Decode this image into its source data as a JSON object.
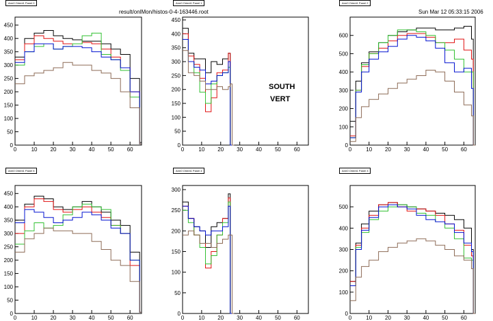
{
  "header": {
    "file": "result/onlMon/histos-0-4-163446.root",
    "datetime": "Sun Mar 12 05:33:15 2006"
  },
  "annotation": [
    "SOUTH",
    "VERT"
  ],
  "colors": {
    "black": "#000000",
    "red": "#e01010",
    "green": "#30c030",
    "blue": "#0010d0",
    "brown": "#8c6a55"
  },
  "chart_data": [
    {
      "type": "line",
      "title": "Arm0 Orient1 Panel 0",
      "xlim": [
        0,
        66
      ],
      "ylim": [
        0,
        480
      ],
      "xticks": [
        0,
        10,
        20,
        30,
        40,
        50,
        60
      ],
      "yticks": [
        0,
        50,
        100,
        150,
        200,
        250,
        300,
        350,
        400,
        450
      ],
      "x": [
        0,
        5,
        10,
        15,
        20,
        25,
        30,
        35,
        40,
        45,
        50,
        55,
        60,
        65
      ],
      "series": [
        {
          "color": "black",
          "values": [
            330,
            400,
            420,
            430,
            410,
            400,
            395,
            390,
            390,
            380,
            360,
            340,
            250,
            10
          ]
        },
        {
          "color": "red",
          "values": [
            320,
            380,
            410,
            400,
            390,
            380,
            380,
            385,
            380,
            360,
            330,
            290,
            200,
            5
          ]
        },
        {
          "color": "green",
          "values": [
            300,
            350,
            370,
            380,
            360,
            370,
            380,
            410,
            420,
            340,
            320,
            280,
            180,
            5
          ]
        },
        {
          "color": "blue",
          "values": [
            310,
            350,
            380,
            380,
            360,
            370,
            370,
            365,
            350,
            330,
            320,
            290,
            200,
            5
          ]
        },
        {
          "color": "brown",
          "values": [
            230,
            260,
            270,
            280,
            290,
            310,
            300,
            300,
            280,
            270,
            250,
            200,
            140,
            5
          ]
        }
      ]
    },
    {
      "type": "line",
      "title": "Arm0 Orient1 Panel 1",
      "xlim": [
        0,
        66
      ],
      "ylim": [
        0,
        460
      ],
      "xticks": [
        0,
        10,
        20,
        30,
        40,
        50,
        60
      ],
      "yticks": [
        0,
        50,
        100,
        150,
        200,
        250,
        300,
        350,
        400,
        450
      ],
      "x": [
        0,
        3,
        6,
        9,
        12,
        15,
        18,
        21,
        24,
        25,
        26
      ],
      "series": [
        {
          "color": "black",
          "values": [
            420,
            330,
            310,
            310,
            260,
            300,
            290,
            310,
            330,
            0,
            0
          ]
        },
        {
          "color": "red",
          "values": [
            400,
            320,
            290,
            240,
            120,
            170,
            260,
            270,
            330,
            0,
            0
          ]
        },
        {
          "color": "green",
          "values": [
            380,
            300,
            260,
            190,
            150,
            220,
            250,
            260,
            280,
            0,
            0
          ]
        },
        {
          "color": "blue",
          "values": [
            380,
            300,
            280,
            270,
            220,
            230,
            250,
            260,
            300,
            0,
            0
          ]
        },
        {
          "color": "brown",
          "values": [
            340,
            260,
            250,
            230,
            200,
            200,
            210,
            200,
            210,
            220,
            0
          ]
        }
      ]
    },
    {
      "type": "line",
      "title": "Arm0 Orient1 Panel 2",
      "xlim": [
        0,
        66
      ],
      "ylim": [
        0,
        700
      ],
      "xticks": [
        0,
        10,
        20,
        30,
        40,
        50,
        60
      ],
      "yticks": [
        0,
        100,
        200,
        300,
        400,
        500,
        600
      ],
      "x": [
        0,
        3,
        6,
        10,
        15,
        20,
        25,
        30,
        35,
        40,
        45,
        50,
        55,
        60,
        64,
        65
      ],
      "series": [
        {
          "color": "black",
          "values": [
            130,
            350,
            450,
            510,
            560,
            600,
            620,
            630,
            640,
            640,
            630,
            630,
            640,
            650,
            580,
            0
          ]
        },
        {
          "color": "red",
          "values": [
            50,
            300,
            430,
            500,
            530,
            570,
            600,
            610,
            610,
            590,
            560,
            560,
            580,
            520,
            470,
            0
          ]
        },
        {
          "color": "green",
          "values": [
            40,
            300,
            440,
            500,
            560,
            600,
            630,
            630,
            620,
            600,
            560,
            520,
            470,
            400,
            400,
            0
          ]
        },
        {
          "color": "blue",
          "values": [
            40,
            290,
            400,
            470,
            510,
            540,
            580,
            600,
            590,
            570,
            530,
            450,
            400,
            420,
            310,
            0
          ]
        },
        {
          "color": "brown",
          "values": [
            20,
            150,
            210,
            250,
            280,
            310,
            340,
            360,
            380,
            410,
            400,
            350,
            290,
            220,
            160,
            0
          ]
        }
      ]
    },
    {
      "type": "line",
      "title": "Arm0 Orient1 Panel 5",
      "xlim": [
        0,
        66
      ],
      "ylim": [
        0,
        480
      ],
      "xticks": [
        0,
        10,
        20,
        30,
        40,
        50,
        60
      ],
      "yticks": [
        0,
        50,
        100,
        150,
        200,
        250,
        300,
        350,
        400,
        450
      ],
      "x": [
        0,
        5,
        10,
        15,
        20,
        25,
        30,
        35,
        40,
        45,
        50,
        55,
        60,
        65
      ],
      "series": [
        {
          "color": "black",
          "values": [
            350,
            410,
            440,
            430,
            400,
            390,
            400,
            420,
            400,
            380,
            350,
            330,
            230,
            5
          ]
        },
        {
          "color": "red",
          "values": [
            300,
            400,
            430,
            420,
            390,
            380,
            390,
            400,
            380,
            360,
            330,
            300,
            180,
            5
          ]
        },
        {
          "color": "green",
          "values": [
            260,
            310,
            340,
            320,
            330,
            370,
            400,
            410,
            400,
            390,
            330,
            300,
            200,
            5
          ]
        },
        {
          "color": "blue",
          "values": [
            340,
            390,
            380,
            360,
            340,
            350,
            360,
            380,
            370,
            350,
            320,
            300,
            200,
            5
          ]
        },
        {
          "color": "brown",
          "values": [
            230,
            280,
            300,
            320,
            310,
            310,
            300,
            300,
            270,
            240,
            200,
            180,
            120,
            5
          ]
        }
      ]
    },
    {
      "type": "line",
      "title": "Arm0 Orient1 Panel 4",
      "xlim": [
        0,
        66
      ],
      "ylim": [
        0,
        310
      ],
      "xticks": [
        0,
        10,
        20,
        30,
        40,
        50,
        60
      ],
      "yticks": [
        0,
        50,
        100,
        150,
        200,
        250,
        300
      ],
      "x": [
        0,
        3,
        6,
        9,
        12,
        15,
        18,
        21,
        24,
        25,
        26
      ],
      "series": [
        {
          "color": "black",
          "values": [
            270,
            230,
            210,
            200,
            160,
            210,
            220,
            230,
            290,
            0,
            0
          ]
        },
        {
          "color": "red",
          "values": [
            260,
            230,
            190,
            170,
            110,
            150,
            190,
            230,
            280,
            0,
            0
          ]
        },
        {
          "color": "green",
          "values": [
            250,
            220,
            190,
            160,
            120,
            140,
            190,
            220,
            270,
            0,
            0
          ]
        },
        {
          "color": "blue",
          "values": [
            260,
            230,
            210,
            200,
            190,
            200,
            200,
            210,
            260,
            0,
            0
          ]
        },
        {
          "color": "brown",
          "values": [
            190,
            200,
            190,
            170,
            170,
            160,
            170,
            180,
            190,
            190,
            0
          ]
        }
      ]
    },
    {
      "type": "line",
      "title": "Arm0 Orient1 Panel 3",
      "xlim": [
        0,
        66
      ],
      "ylim": [
        0,
        600
      ],
      "xticks": [
        0,
        10,
        20,
        30,
        40,
        50,
        60
      ],
      "yticks": [
        0,
        100,
        200,
        300,
        400,
        500
      ],
      "x": [
        0,
        3,
        6,
        10,
        15,
        20,
        25,
        30,
        35,
        40,
        45,
        50,
        55,
        60,
        64,
        65
      ],
      "series": [
        {
          "color": "black",
          "values": [
            150,
            330,
            420,
            480,
            510,
            520,
            510,
            500,
            490,
            480,
            470,
            460,
            440,
            400,
            300,
            0
          ]
        },
        {
          "color": "red",
          "values": [
            150,
            320,
            400,
            460,
            510,
            520,
            500,
            480,
            490,
            480,
            460,
            420,
            390,
            320,
            270,
            0
          ]
        },
        {
          "color": "green",
          "values": [
            130,
            310,
            380,
            440,
            480,
            500,
            510,
            500,
            470,
            460,
            430,
            400,
            350,
            260,
            250,
            0
          ]
        },
        {
          "color": "blue",
          "values": [
            130,
            300,
            390,
            450,
            500,
            510,
            500,
            490,
            460,
            440,
            430,
            420,
            380,
            330,
            290,
            0
          ]
        },
        {
          "color": "brown",
          "values": [
            60,
            170,
            220,
            250,
            290,
            310,
            330,
            340,
            350,
            340,
            320,
            300,
            270,
            250,
            210,
            0
          ]
        }
      ]
    }
  ]
}
